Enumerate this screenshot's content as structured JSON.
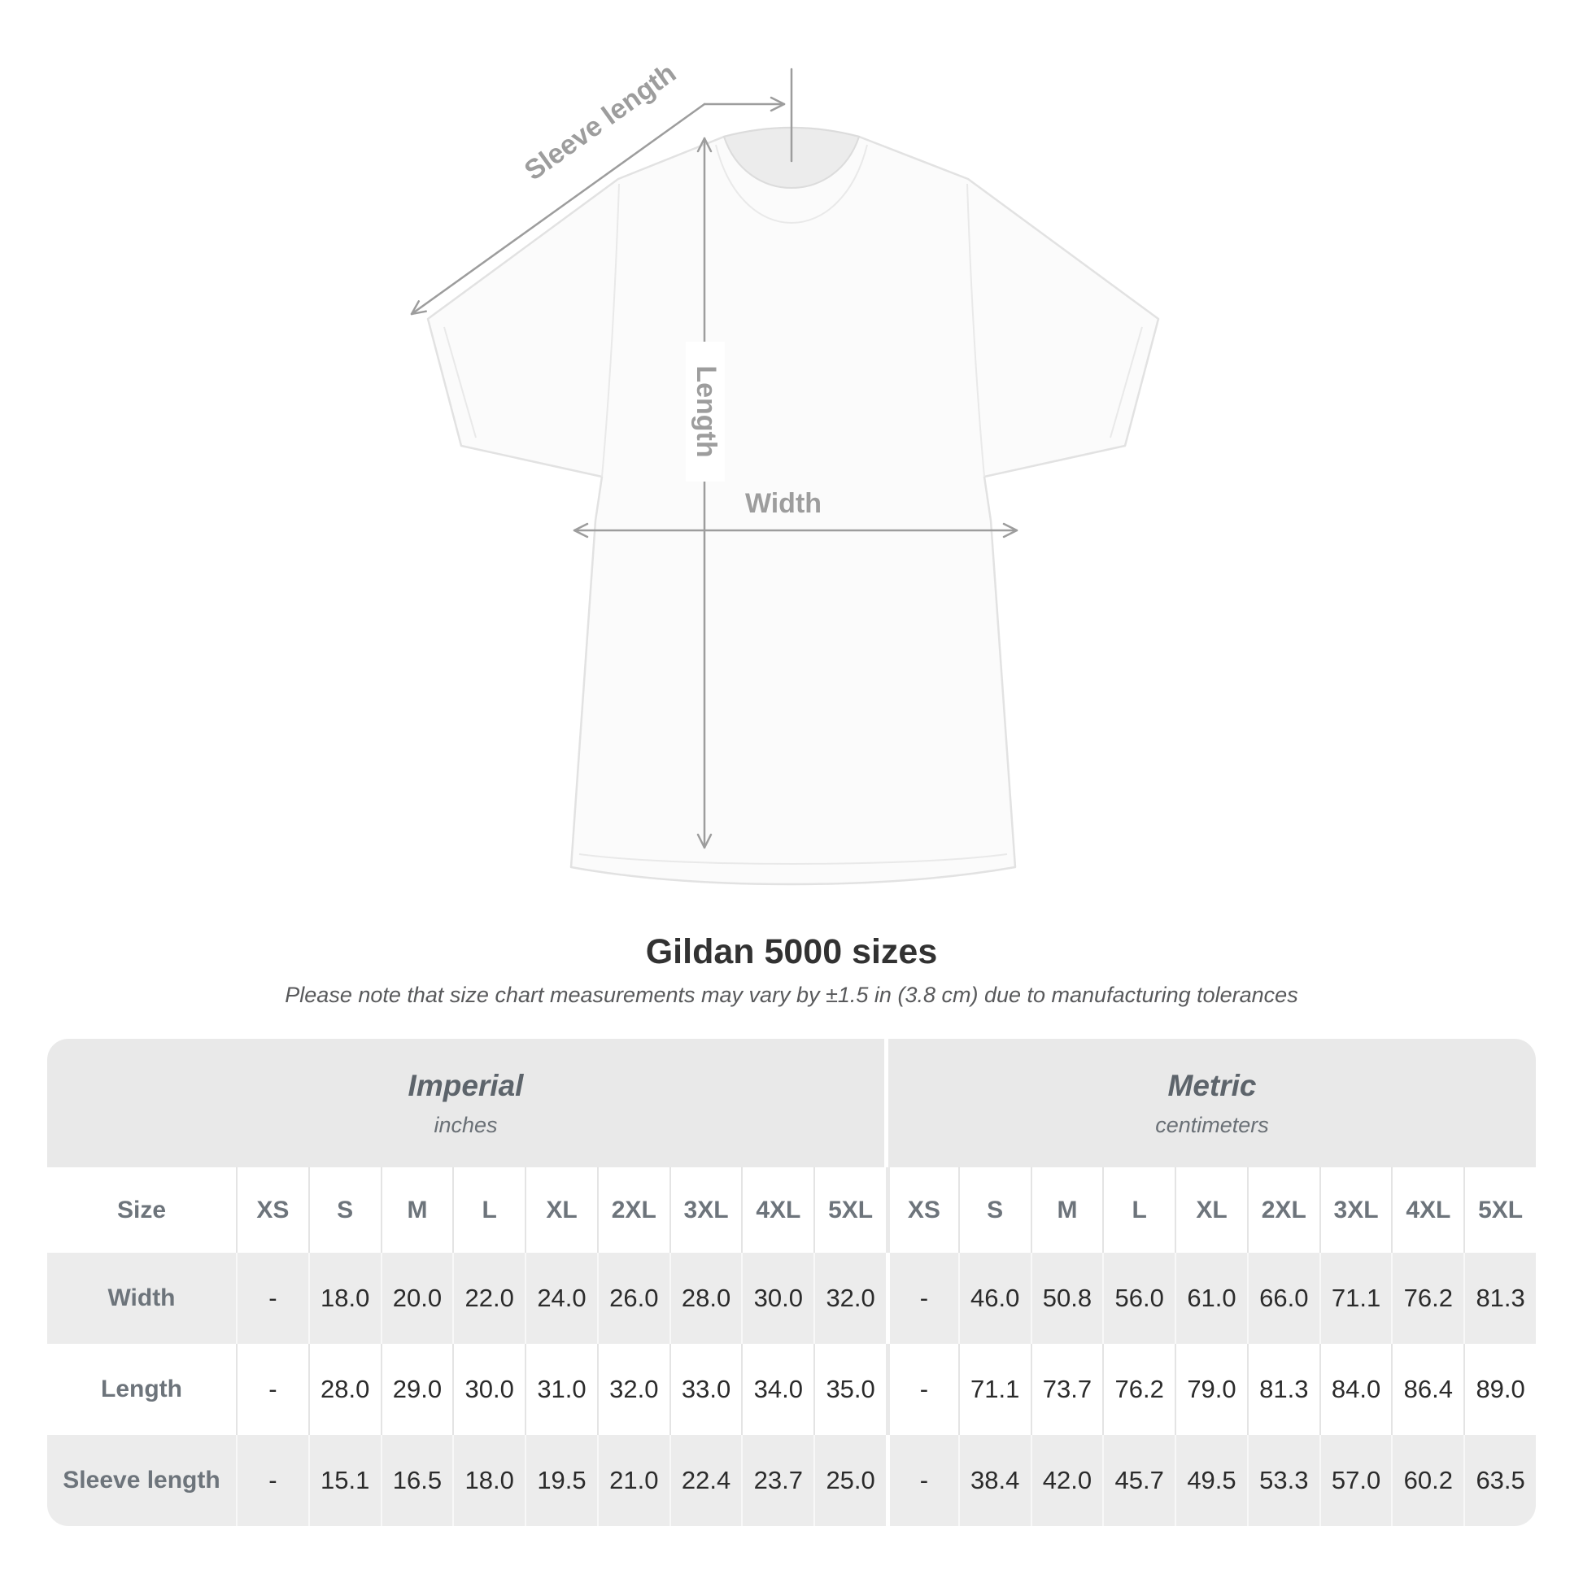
{
  "diagram": {
    "sleeve_length_label": "Sleeve length",
    "length_label": "Length",
    "width_label": "Width"
  },
  "title": "Gildan 5000 sizes",
  "subtitle": "Please note that size chart measurements may vary by ±1.5 in (3.8 cm) due to manufacturing tolerances",
  "table": {
    "size_column_header": "Size",
    "sections": [
      {
        "name": "Imperial",
        "unit": "inches"
      },
      {
        "name": "Metric",
        "unit": "centimeters"
      }
    ],
    "sizes": [
      "XS",
      "S",
      "M",
      "L",
      "XL",
      "2XL",
      "3XL",
      "4XL",
      "5XL"
    ],
    "rows": [
      {
        "label": "Width",
        "imperial": [
          "-",
          "18.0",
          "20.0",
          "22.0",
          "24.0",
          "26.0",
          "28.0",
          "30.0",
          "32.0"
        ],
        "metric": [
          "-",
          "46.0",
          "50.8",
          "56.0",
          "61.0",
          "66.0",
          "71.1",
          "76.2",
          "81.3"
        ]
      },
      {
        "label": "Length",
        "imperial": [
          "-",
          "28.0",
          "29.0",
          "30.0",
          "31.0",
          "32.0",
          "33.0",
          "34.0",
          "35.0"
        ],
        "metric": [
          "-",
          "71.1",
          "73.7",
          "76.2",
          "79.0",
          "81.3",
          "84.0",
          "86.4",
          "89.0"
        ]
      },
      {
        "label": "Sleeve length",
        "imperial": [
          "-",
          "15.1",
          "16.5",
          "18.0",
          "19.5",
          "21.0",
          "22.4",
          "23.7",
          "25.0"
        ],
        "metric": [
          "-",
          "38.4",
          "42.0",
          "45.7",
          "49.5",
          "53.3",
          "57.0",
          "60.2",
          "63.5"
        ]
      }
    ]
  },
  "colors": {
    "band_gray": "#e9e9e9",
    "row_gray": "#ececec",
    "header_text": "#6d747b",
    "value_text": "#2b2b2b",
    "annotation": "#9d9d9d",
    "title_text": "#323232",
    "subtitle_text": "#58595b"
  }
}
